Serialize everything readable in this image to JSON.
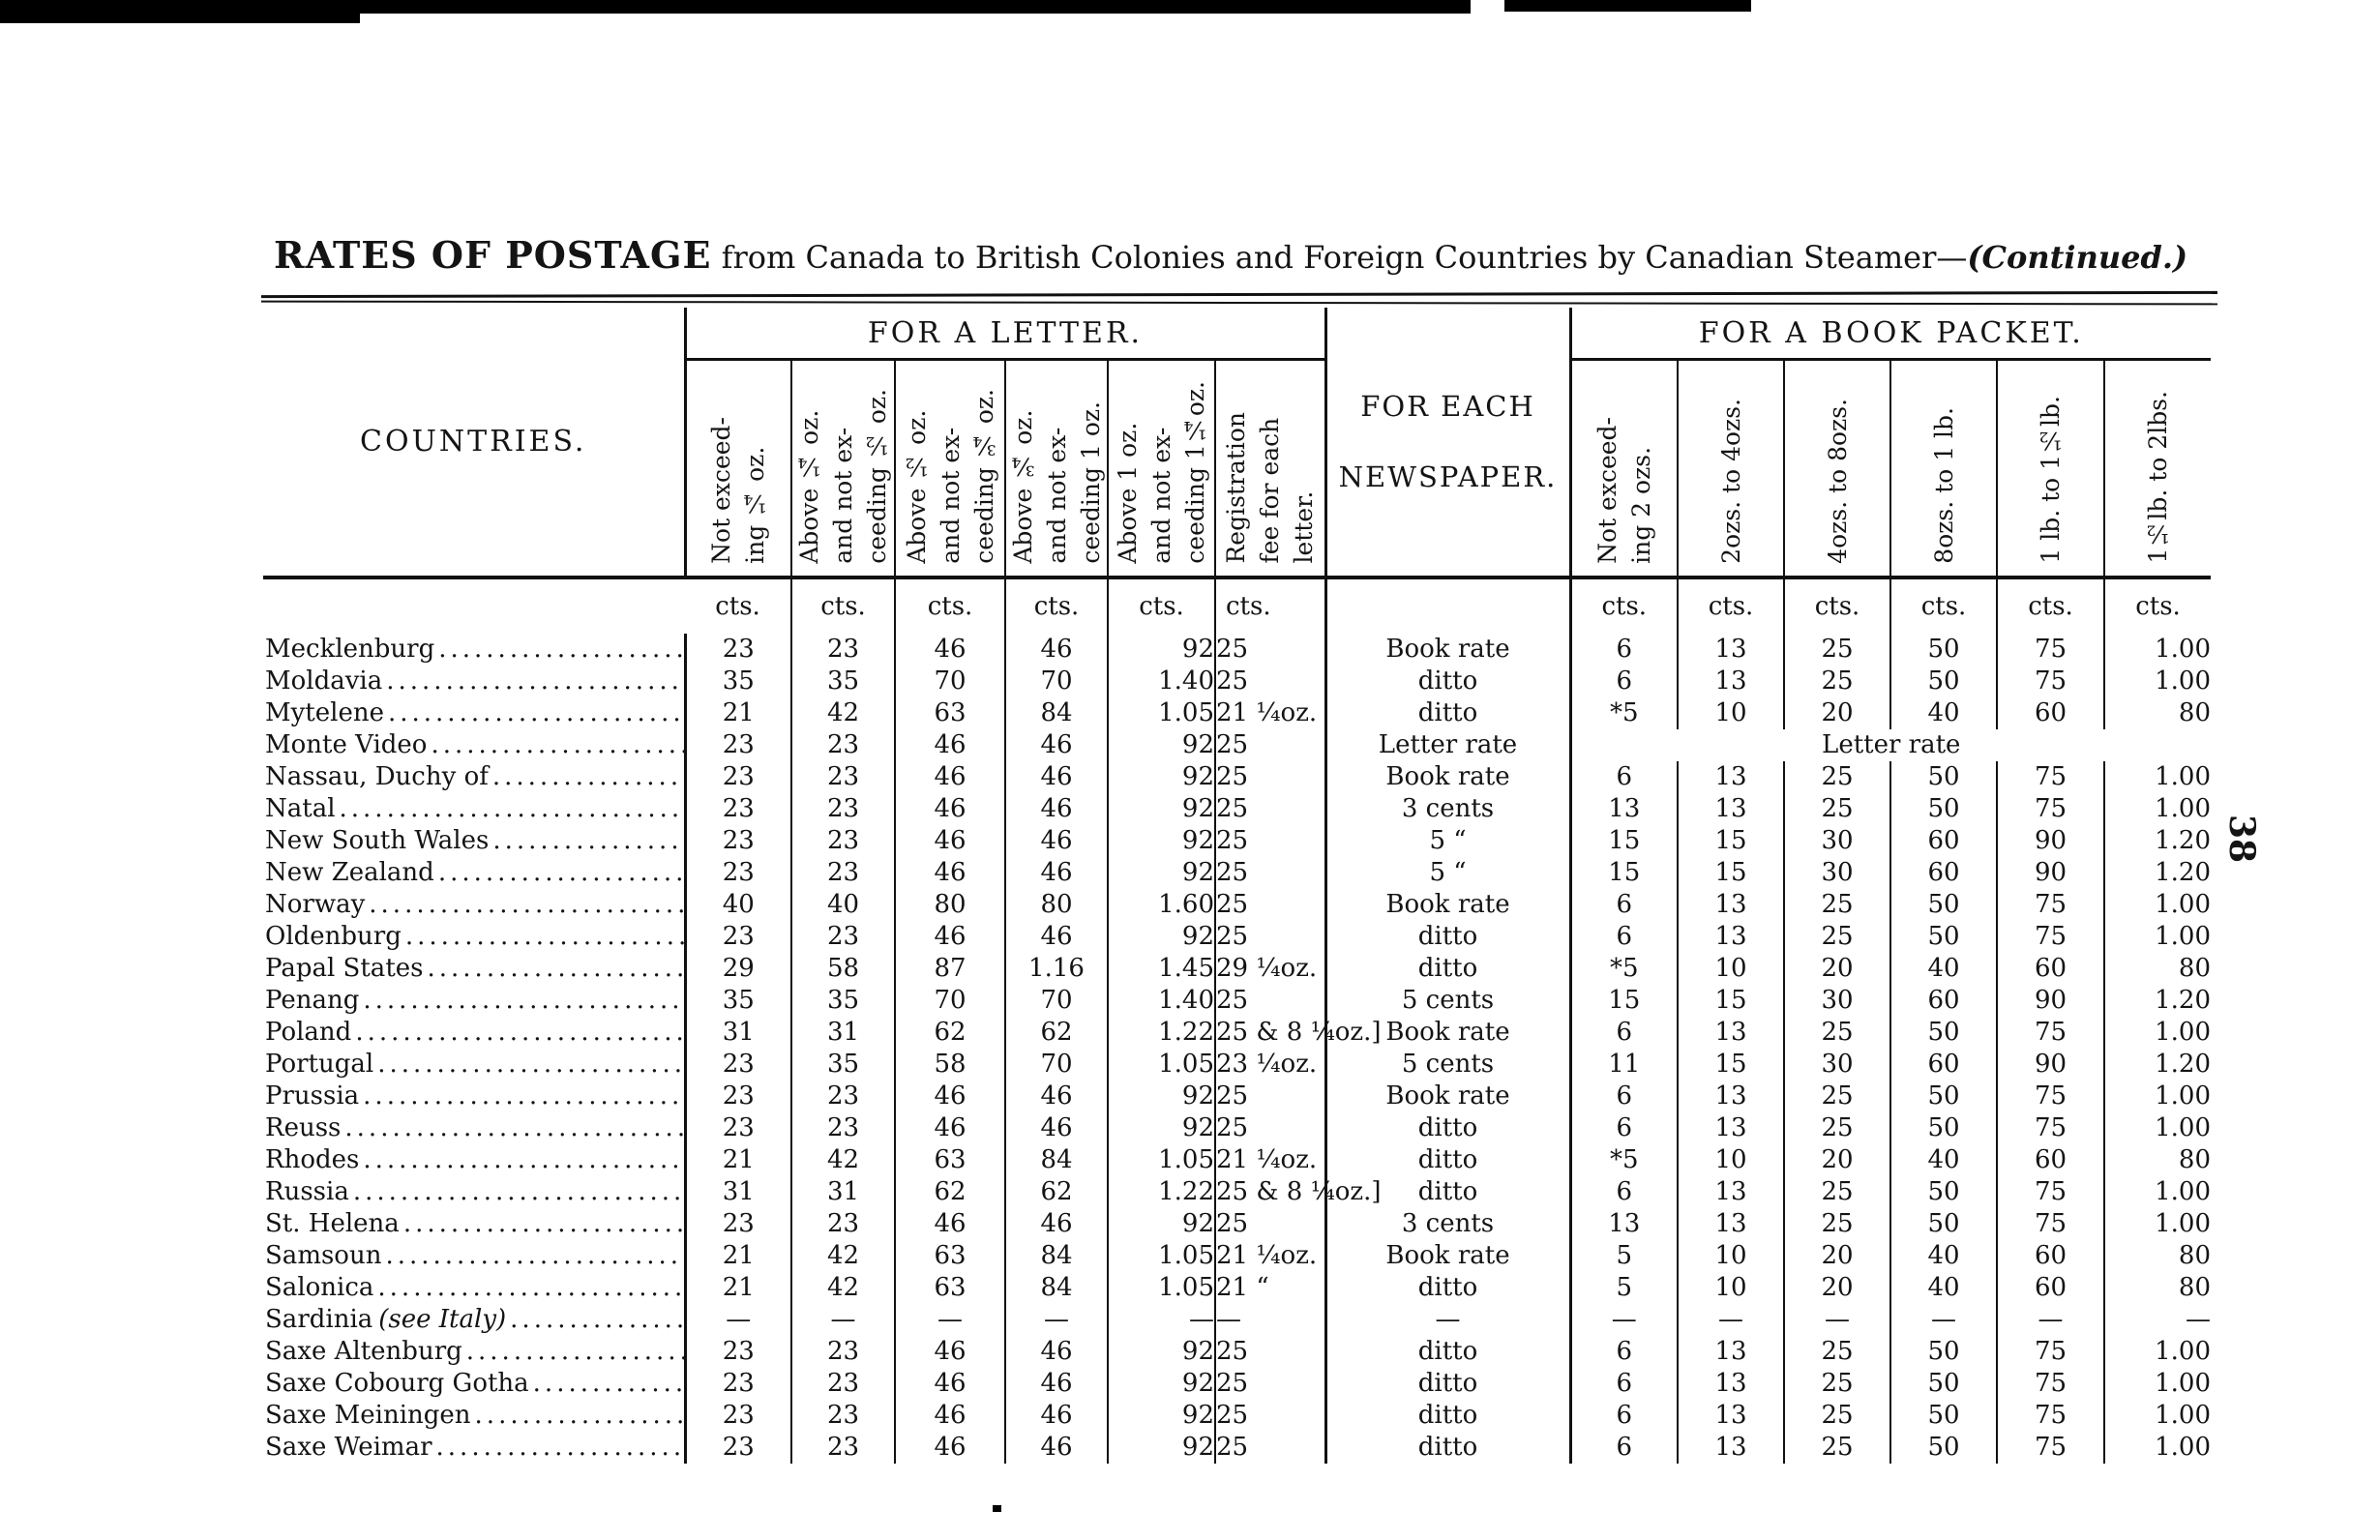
{
  "page": {
    "title_lead": "RATES OF POSTAGE",
    "title_rest": " from Canada to British Colonies and Foreign Countries by Canadian Steamer—",
    "title_continued": "(Continued.)",
    "page_number": "38"
  },
  "table": {
    "countries_header": "COUNTRIES.",
    "letter_section": "FOR A LETTER.",
    "newspaper_header": "FOR EACH\nNEWSPAPER.",
    "book_section": "FOR A BOOK PACKET.",
    "cts_label": "cts.",
    "letter_columns": [
      "Not exceed-\ning ¼ oz.",
      "Above ¼ oz.\nand not ex-\nceeding ½ oz.",
      "Above ½ oz.\nand not ex-\nceeding ¾ oz.",
      "Above ¾ oz.\nand not ex-\nceeding 1 oz.",
      "Above 1 oz.\nand not ex-\nceeding 1¼oz.",
      "Registration\nfee for each\nletter."
    ],
    "book_columns": [
      "Not exceed-\ning 2 ozs.",
      "2ozs. to 4ozs.",
      "4ozs. to 8ozs.",
      "8ozs. to 1 lb.",
      "1 lb. to 1½lb.",
      "1½lb. to 2lbs."
    ],
    "rows": [
      {
        "name": "Mecklenburg",
        "letter": [
          "23",
          "23",
          "46",
          "46",
          "92"
        ],
        "reg": "25",
        "newspaper": "Book rate",
        "book": [
          "6",
          "13",
          "25",
          "50",
          "75",
          "1.00"
        ]
      },
      {
        "name": "Moldavia",
        "letter": [
          "35",
          "35",
          "70",
          "70",
          "1.40"
        ],
        "reg": "25",
        "newspaper": "ditto",
        "book": [
          "6",
          "13",
          "25",
          "50",
          "75",
          "1.00"
        ]
      },
      {
        "name": "Mytelene",
        "letter": [
          "21",
          "42",
          "63",
          "84",
          "1.05"
        ],
        "reg": "21 ¼oz.",
        "newspaper": "ditto",
        "book": [
          "*5",
          "10",
          "20",
          "40",
          "60",
          "80"
        ]
      },
      {
        "name": "Monte Video",
        "letter": [
          "23",
          "23",
          "46",
          "46",
          "92"
        ],
        "reg": "25",
        "newspaper": "Letter rate",
        "book_span": "Letter rate"
      },
      {
        "name": "Nassau, Duchy of",
        "letter": [
          "23",
          "23",
          "46",
          "46",
          "92"
        ],
        "reg": "25",
        "newspaper": "Book rate",
        "book": [
          "6",
          "13",
          "25",
          "50",
          "75",
          "1.00"
        ]
      },
      {
        "name": "Natal",
        "letter": [
          "23",
          "23",
          "46",
          "46",
          "92"
        ],
        "reg": "25",
        "newspaper": "3 cents",
        "book": [
          "13",
          "13",
          "25",
          "50",
          "75",
          "1.00"
        ]
      },
      {
        "name": "New South Wales",
        "letter": [
          "23",
          "23",
          "46",
          "46",
          "92"
        ],
        "reg": "25",
        "newspaper": "5   “",
        "book": [
          "15",
          "15",
          "30",
          "60",
          "90",
          "1.20"
        ]
      },
      {
        "name": "New Zealand",
        "letter": [
          "23",
          "23",
          "46",
          "46",
          "92"
        ],
        "reg": "25",
        "newspaper": "5   “",
        "book": [
          "15",
          "15",
          "30",
          "60",
          "90",
          "1.20"
        ]
      },
      {
        "name": "Norway",
        "letter": [
          "40",
          "40",
          "80",
          "80",
          "1.60"
        ],
        "reg": "25",
        "newspaper": "Book rate",
        "book": [
          "6",
          "13",
          "25",
          "50",
          "75",
          "1.00"
        ]
      },
      {
        "name": "Oldenburg",
        "letter": [
          "23",
          "23",
          "46",
          "46",
          "92"
        ],
        "reg": "25",
        "newspaper": "ditto",
        "book": [
          "6",
          "13",
          "25",
          "50",
          "75",
          "1.00"
        ]
      },
      {
        "name": "Papal States",
        "letter": [
          "29",
          "58",
          "87",
          "1.16",
          "1.45"
        ],
        "reg": "29 ¼oz.",
        "newspaper": "ditto",
        "book": [
          "*5",
          "10",
          "20",
          "40",
          "60",
          "80"
        ]
      },
      {
        "name": "Penang",
        "letter": [
          "35",
          "35",
          "70",
          "70",
          "1.40"
        ],
        "reg": "25",
        "newspaper": "5 cents",
        "book": [
          "15",
          "15",
          "30",
          "60",
          "90",
          "1.20"
        ]
      },
      {
        "name": "Poland",
        "letter": [
          "31",
          "31",
          "62",
          "62",
          "1.22"
        ],
        "reg": "25 & 8 ¼oz.]",
        "newspaper": "Book rate",
        "book": [
          "6",
          "13",
          "25",
          "50",
          "75",
          "1.00"
        ]
      },
      {
        "name": "Portugal",
        "letter": [
          "23",
          "35",
          "58",
          "70",
          "1.05"
        ],
        "reg": "23 ¼oz.",
        "newspaper": "5 cents",
        "book": [
          "11",
          "15",
          "30",
          "60",
          "90",
          "1.20"
        ]
      },
      {
        "name": "Prussia",
        "letter": [
          "23",
          "23",
          "46",
          "46",
          "92"
        ],
        "reg": "25",
        "newspaper": "Book rate",
        "book": [
          "6",
          "13",
          "25",
          "50",
          "75",
          "1.00"
        ]
      },
      {
        "name": "Reuss",
        "letter": [
          "23",
          "23",
          "46",
          "46",
          "92"
        ],
        "reg": "25",
        "newspaper": "ditto",
        "book": [
          "6",
          "13",
          "25",
          "50",
          "75",
          "1.00"
        ]
      },
      {
        "name": "Rhodes",
        "letter": [
          "21",
          "42",
          "63",
          "84",
          "1.05"
        ],
        "reg": "21 ¼oz.",
        "newspaper": "ditto",
        "book": [
          "*5",
          "10",
          "20",
          "40",
          "60",
          "80"
        ]
      },
      {
        "name": "Russia",
        "letter": [
          "31",
          "31",
          "62",
          "62",
          "1.22"
        ],
        "reg": "25 & 8 ¼oz.]",
        "newspaper": "ditto",
        "book": [
          "6",
          "13",
          "25",
          "50",
          "75",
          "1.00"
        ]
      },
      {
        "name": "St. Helena",
        "letter": [
          "23",
          "23",
          "46",
          "46",
          "92"
        ],
        "reg": "25",
        "newspaper": "3 cents",
        "book": [
          "13",
          "13",
          "25",
          "50",
          "75",
          "1.00"
        ]
      },
      {
        "name": "Samsoun",
        "letter": [
          "21",
          "42",
          "63",
          "84",
          "1.05"
        ],
        "reg": "21 ¼oz.",
        "newspaper": "Book rate",
        "book": [
          "5",
          "10",
          "20",
          "40",
          "60",
          "80"
        ]
      },
      {
        "name": "Salonica",
        "letter": [
          "21",
          "42",
          "63",
          "84",
          "1.05"
        ],
        "reg": "21   “",
        "newspaper": "ditto",
        "book": [
          "5",
          "10",
          "20",
          "40",
          "60",
          "80"
        ]
      },
      {
        "name": "Sardinia",
        "note": "(see Italy)",
        "letter": [
          "—",
          "—",
          "—",
          "—",
          "—"
        ],
        "reg": "—",
        "newspaper": "—",
        "book": [
          "—",
          "—",
          "—",
          "—",
          "—",
          "—"
        ]
      },
      {
        "name": "Saxe Altenburg",
        "letter": [
          "23",
          "23",
          "46",
          "46",
          "92"
        ],
        "reg": "25",
        "newspaper": "ditto",
        "book": [
          "6",
          "13",
          "25",
          "50",
          "75",
          "1.00"
        ]
      },
      {
        "name": "Saxe Cobourg Gotha",
        "letter": [
          "23",
          "23",
          "46",
          "46",
          "92"
        ],
        "reg": "25",
        "newspaper": "ditto",
        "book": [
          "6",
          "13",
          "25",
          "50",
          "75",
          "1.00"
        ]
      },
      {
        "name": "Saxe Meiningen",
        "letter": [
          "23",
          "23",
          "46",
          "46",
          "92"
        ],
        "reg": "25",
        "newspaper": "ditto",
        "book": [
          "6",
          "13",
          "25",
          "50",
          "75",
          "1.00"
        ]
      },
      {
        "name": "Saxe Weimar",
        "letter": [
          "23",
          "23",
          "46",
          "46",
          "92"
        ],
        "reg": "25",
        "newspaper": "ditto",
        "book": [
          "6",
          "13",
          "25",
          "50",
          "75",
          "1.00"
        ]
      }
    ]
  }
}
